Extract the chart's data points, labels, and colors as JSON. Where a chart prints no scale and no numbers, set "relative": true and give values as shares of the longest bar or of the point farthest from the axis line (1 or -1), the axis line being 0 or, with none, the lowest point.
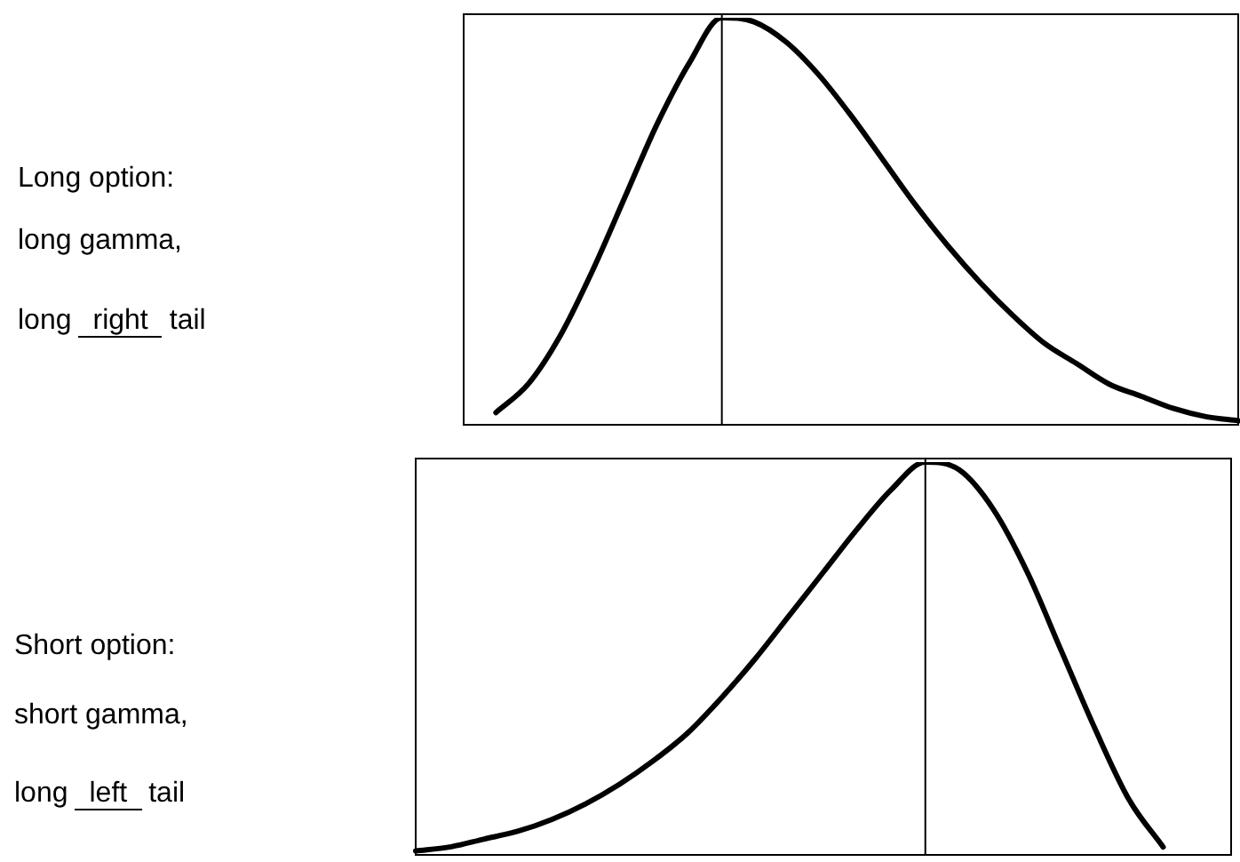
{
  "chart_data": [
    {
      "type": "line",
      "relative": true,
      "color": "#000000",
      "categories": [
        null,
        null,
        null,
        null,
        null,
        null,
        null,
        null,
        null,
        null,
        null,
        null,
        null,
        null,
        null,
        null,
        null,
        null,
        null,
        null,
        null,
        null,
        null,
        null,
        null
      ],
      "values": [
        null,
        0.03,
        0.1,
        0.22,
        0.38,
        0.56,
        0.74,
        0.89,
        1.0,
        0.99,
        0.94,
        0.86,
        0.76,
        0.65,
        0.54,
        0.44,
        0.35,
        0.27,
        0.2,
        0.15,
        0.1,
        0.07,
        0.04,
        0.02,
        0.01
      ],
      "annotations": [
        "Long option:",
        "long gamma,",
        "long right tail"
      ]
    },
    {
      "type": "line",
      "relative": true,
      "color": "#000000",
      "categories": [
        null,
        null,
        null,
        null,
        null,
        null,
        null,
        null,
        null,
        null,
        null,
        null,
        null,
        null,
        null,
        null,
        null,
        null,
        null,
        null,
        null,
        null,
        null,
        null,
        null
      ],
      "values": [
        0.01,
        0.02,
        0.04,
        0.06,
        0.09,
        0.13,
        0.18,
        0.24,
        0.31,
        0.4,
        0.5,
        0.61,
        0.72,
        0.83,
        0.93,
        1.0,
        0.98,
        0.88,
        0.72,
        0.52,
        0.32,
        0.14,
        0.02,
        null,
        null
      ],
      "annotations": [
        "Short option:",
        "short gamma,",
        "long left tail"
      ]
    }
  ]
}
